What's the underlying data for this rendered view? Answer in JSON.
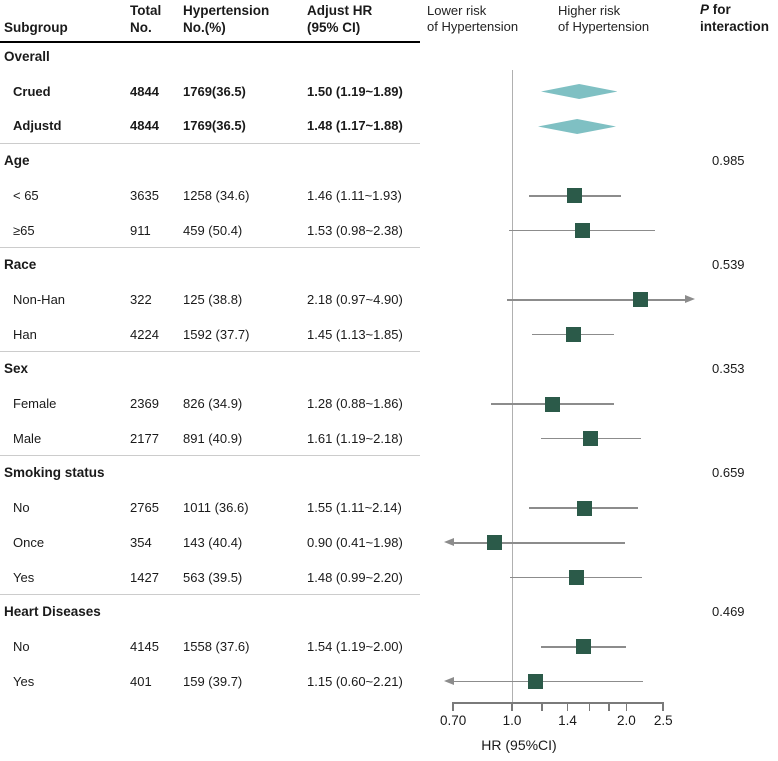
{
  "chart_data": {
    "type": "forest",
    "title": "",
    "header": {
      "subgroup": "Subgroup",
      "total": [
        "Total",
        "No."
      ],
      "hypertension": [
        "Hypertension",
        "No.(%)"
      ],
      "adjust_hr": [
        "Adjust HR",
        "(95% CI)"
      ],
      "lower_risk": [
        "Lower risk",
        "of Hypertension"
      ],
      "higher_risk": [
        "Higher risk",
        "of Hypertension"
      ],
      "p_line1_italic": "P",
      "p_line1_rest": " for",
      "p_line2": "interaction"
    },
    "axis": {
      "label": "HR (95%CI)",
      "scale": "log10",
      "min": 0.7,
      "max": 2.5,
      "reference_line": 1.0,
      "ticks": [
        0.7,
        1.0,
        1.2,
        1.4,
        1.6,
        1.8,
        2.0,
        2.5
      ],
      "tick_labels": [
        {
          "v": 0.7,
          "t": "0.70"
        },
        {
          "v": 1.0,
          "t": "1.0"
        },
        {
          "v": 1.4,
          "t": "1.4"
        },
        {
          "v": 2.0,
          "t": "2.0"
        },
        {
          "v": 2.5,
          "t": "2.5"
        }
      ]
    },
    "colors": {
      "square": "#2b5a49",
      "diamond": "#7fc0c3",
      "ci_line": "#8c8c8c",
      "ref_line": "#b0b0b0",
      "axis": "#7a7a7a",
      "divider": "#cccccc",
      "header_rule": "#000000"
    },
    "rows": [
      {
        "kind": "section",
        "label": "Overall"
      },
      {
        "kind": "item",
        "label": "Crued",
        "bold": true,
        "total": "4844",
        "events": "1769(36.5)",
        "hr_text": "1.50 (1.19~1.89)",
        "hr": 1.5,
        "lo": 1.19,
        "hi": 1.89,
        "marker": "diamond"
      },
      {
        "kind": "item",
        "label": "Adjustd",
        "bold": true,
        "total": "4844",
        "events": "1769(36.5)",
        "hr_text": "1.48 (1.17~1.88)",
        "hr": 1.48,
        "lo": 1.17,
        "hi": 1.88,
        "marker": "diamond"
      },
      {
        "kind": "section",
        "label": "Age",
        "p": "0.985",
        "divider_before": true
      },
      {
        "kind": "item",
        "label": "< 65",
        "total": "3635",
        "events": "1258 (34.6)",
        "hr_text": "1.46 (1.11~1.93)",
        "hr": 1.46,
        "lo": 1.11,
        "hi": 1.93,
        "marker": "square"
      },
      {
        "kind": "item",
        "label": "≥65",
        "total": "911",
        "events": "459 (50.4)",
        "hr_text": "1.53 (0.98~2.38)",
        "hr": 1.53,
        "lo": 0.98,
        "hi": 2.38,
        "marker": "square"
      },
      {
        "kind": "section",
        "label": "Race",
        "p": "0.539",
        "divider_before": true
      },
      {
        "kind": "item",
        "label": "Non-Han",
        "total": "322",
        "events": "125 (38.8)",
        "hr_text": "2.18 (0.97~4.90)",
        "hr": 2.18,
        "lo": 0.97,
        "hi": 4.9,
        "marker": "square"
      },
      {
        "kind": "item",
        "label": "Han",
        "total": "4224",
        "events": "1592 (37.7)",
        "hr_text": "1.45 (1.13~1.85)",
        "hr": 1.45,
        "lo": 1.13,
        "hi": 1.85,
        "marker": "square"
      },
      {
        "kind": "section",
        "label": "Sex",
        "p": "0.353",
        "divider_before": true
      },
      {
        "kind": "item",
        "label": "Female",
        "total": "2369",
        "events": "826 (34.9)",
        "hr_text": "1.28 (0.88~1.86)",
        "hr": 1.28,
        "lo": 0.88,
        "hi": 1.86,
        "marker": "square"
      },
      {
        "kind": "item",
        "label": "Male",
        "total": "2177",
        "events": "891 (40.9)",
        "hr_text": "1.61 (1.19~2.18)",
        "hr": 1.61,
        "lo": 1.19,
        "hi": 2.18,
        "marker": "square"
      },
      {
        "kind": "section",
        "label": "Smoking status",
        "p": "0.659",
        "divider_before": true
      },
      {
        "kind": "item",
        "label": "No",
        "total": "2765",
        "events": "1011 (36.6)",
        "hr_text": "1.55 (1.11~2.14)",
        "hr": 1.55,
        "lo": 1.11,
        "hi": 2.14,
        "marker": "square"
      },
      {
        "kind": "item",
        "label": "Once",
        "total": "354",
        "events": "143 (40.4)",
        "hr_text": "0.90 (0.41~1.98)",
        "hr": 0.9,
        "lo": 0.41,
        "hi": 1.98,
        "marker": "square"
      },
      {
        "kind": "item",
        "label": "Yes",
        "total": "1427",
        "events": "563 (39.5)",
        "hr_text": "1.48 (0.99~2.20)",
        "hr": 1.48,
        "lo": 0.99,
        "hi": 2.2,
        "marker": "square"
      },
      {
        "kind": "section",
        "label": "Heart Diseases",
        "p": "0.469",
        "divider_before": true
      },
      {
        "kind": "item",
        "label": "No",
        "total": "4145",
        "events": "1558 (37.6)",
        "hr_text": "1.54 (1.19~2.00)",
        "hr": 1.54,
        "lo": 1.19,
        "hi": 2.0,
        "marker": "square"
      },
      {
        "kind": "item",
        "label": "Yes",
        "total": "401",
        "events": "159 (39.7)",
        "hr_text": "1.15 (0.60~2.21)",
        "hr": 1.15,
        "lo": 0.6,
        "hi": 2.21,
        "marker": "square"
      }
    ]
  }
}
